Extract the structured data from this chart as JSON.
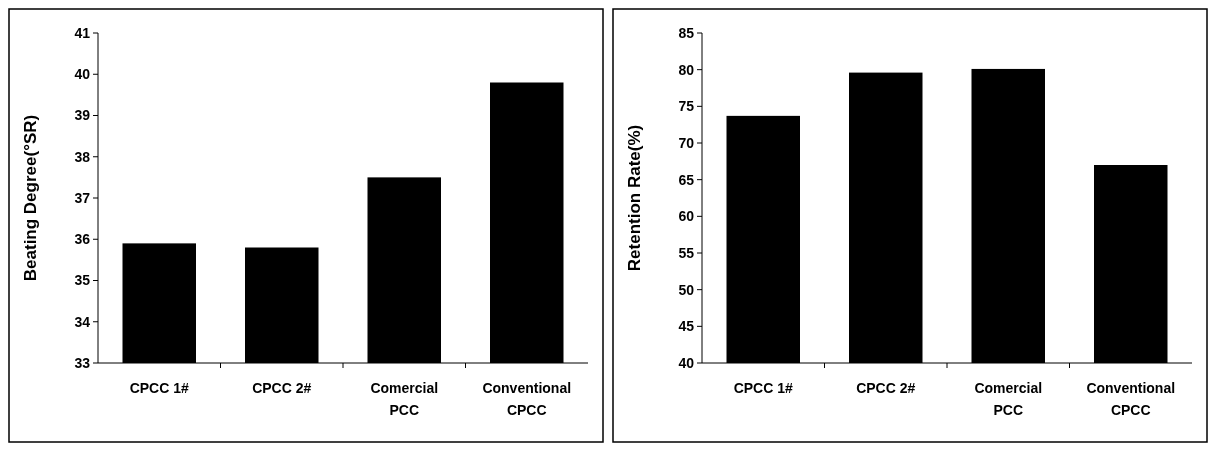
{
  "chart_data": [
    {
      "type": "bar",
      "ylabel": "Beating Degree(°SR)",
      "categories": [
        "CPCC 1#",
        "CPCC 2#",
        "Comercial PCC",
        "Conventional CPCC"
      ],
      "values": [
        35.9,
        35.8,
        37.5,
        39.8
      ],
      "color": "#000000",
      "ylim": [
        33,
        41
      ],
      "yticks": [
        33,
        34,
        35,
        36,
        37,
        38,
        39,
        40,
        41
      ]
    },
    {
      "type": "bar",
      "ylabel": "Retention Rate(%)",
      "categories": [
        "CPCC 1#",
        "CPCC 2#",
        "Comercial PCC",
        "Conventional CPCC"
      ],
      "values": [
        73.7,
        79.6,
        80.1,
        67.0
      ],
      "color": "#000000",
      "ylim": [
        40,
        85
      ],
      "yticks": [
        40,
        45,
        50,
        55,
        60,
        65,
        70,
        75,
        80,
        85
      ]
    }
  ]
}
